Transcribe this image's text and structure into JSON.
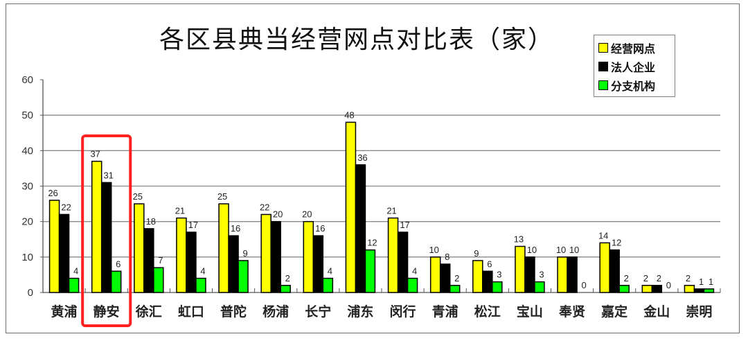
{
  "chart_data": {
    "type": "bar",
    "title": "各区县典当经营网点对比表（家）",
    "xlabel": "",
    "ylabel": "",
    "ylim": [
      0,
      60
    ],
    "yticks": [
      0,
      10,
      20,
      30,
      40,
      50,
      60
    ],
    "grid": true,
    "legend_position": "top-right",
    "categories": [
      "黄浦",
      "静安",
      "徐汇",
      "虹口",
      "普陀",
      "杨浦",
      "长宁",
      "浦东",
      "闵行",
      "青浦",
      "松江",
      "宝山",
      "奉贤",
      "嘉定",
      "金山",
      "崇明"
    ],
    "series": [
      {
        "name": "经营网点",
        "color": "#FFFF00",
        "values": [
          26,
          37,
          25,
          21,
          25,
          22,
          20,
          48,
          21,
          10,
          9,
          13,
          10,
          14,
          2,
          2
        ]
      },
      {
        "name": "法人企业",
        "color": "#000000",
        "values": [
          22,
          31,
          18,
          17,
          16,
          20,
          16,
          36,
          17,
          8,
          6,
          10,
          10,
          12,
          2,
          1
        ]
      },
      {
        "name": "分支机构",
        "color": "#00FF00",
        "values": [
          4,
          6,
          7,
          4,
          9,
          2,
          4,
          12,
          4,
          2,
          3,
          3,
          0,
          2,
          0,
          1
        ]
      }
    ],
    "annotations": [
      {
        "type": "highlight-box",
        "target_category": "静安",
        "color": "#FF2020"
      }
    ]
  },
  "legend": {
    "items": [
      {
        "label": "经营网点",
        "color": "#FFFF00"
      },
      {
        "label": "法人企业",
        "color": "#000000"
      },
      {
        "label": "分支机构",
        "color": "#00FF00"
      }
    ]
  }
}
